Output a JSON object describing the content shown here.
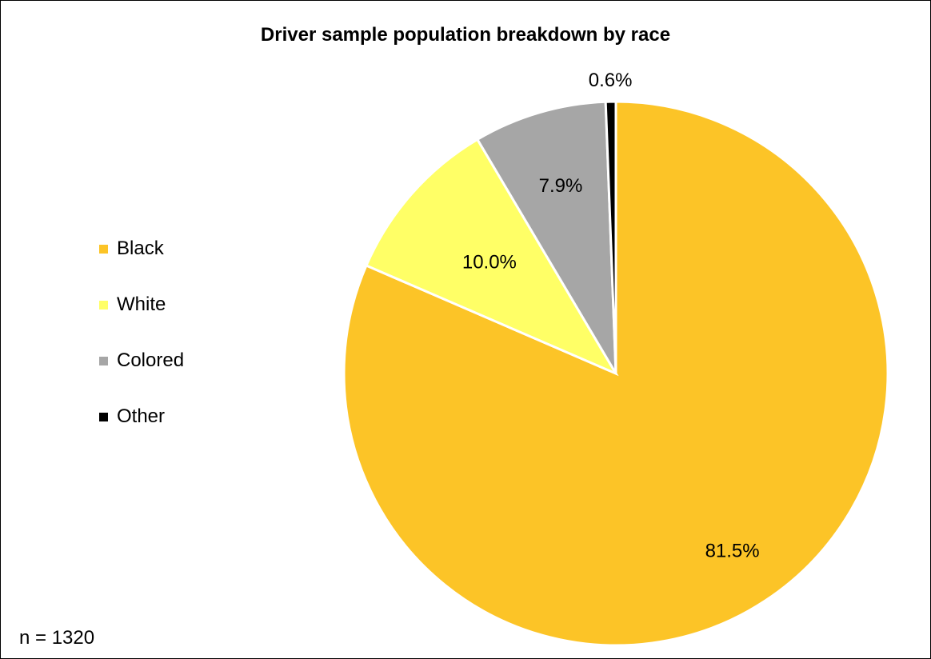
{
  "chart_data": {
    "type": "pie",
    "title": "Driver sample population breakdown by race",
    "note": "n = 1320",
    "legend_position": "left",
    "series": [
      {
        "name": "Black",
        "value": 81.5,
        "label": "81.5%",
        "color": "#FCC427"
      },
      {
        "name": "White",
        "value": 10.0,
        "label": "10.0%",
        "color": "#FFFF66"
      },
      {
        "name": "Colored",
        "value": 7.9,
        "label": "7.9%",
        "color": "#A6A6A6"
      },
      {
        "name": "Other",
        "value": 0.6,
        "label": "0.6%",
        "color": "#000000"
      }
    ]
  }
}
